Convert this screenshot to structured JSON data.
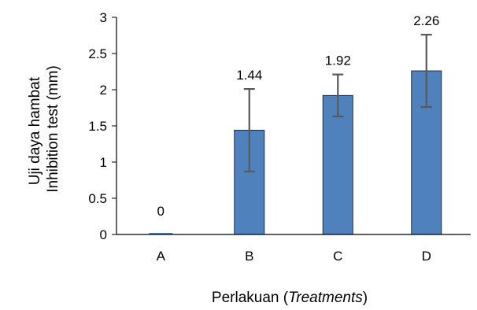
{
  "chart_data": {
    "type": "bar",
    "categories": [
      "A",
      "B",
      "C",
      "D"
    ],
    "values": [
      0,
      1.44,
      1.92,
      2.26
    ],
    "error": [
      0,
      0.57,
      0.29,
      0.5
    ],
    "data_labels": [
      "0",
      "1.44",
      "1.92",
      "2.26"
    ],
    "ylim": [
      0,
      3
    ],
    "yticks": [
      0,
      0.5,
      1,
      1.5,
      2,
      2.5,
      3
    ],
    "ytick_labels": [
      "0",
      "0.5",
      "1",
      "1.5",
      "2",
      "2.5",
      "3"
    ],
    "ylabel_line1": "Uji daya hambat",
    "ylabel_line2": "Inhibition test (mm)",
    "xlabel_prefix": "Perlakuan (",
    "xlabel_italic": "Treatments",
    "xlabel_suffix": ")",
    "grid": false,
    "colors": {
      "bar": "#4f81bd",
      "bar_edge": "#1f2d44",
      "error_bar": "#595959",
      "axis": "#000000"
    }
  }
}
